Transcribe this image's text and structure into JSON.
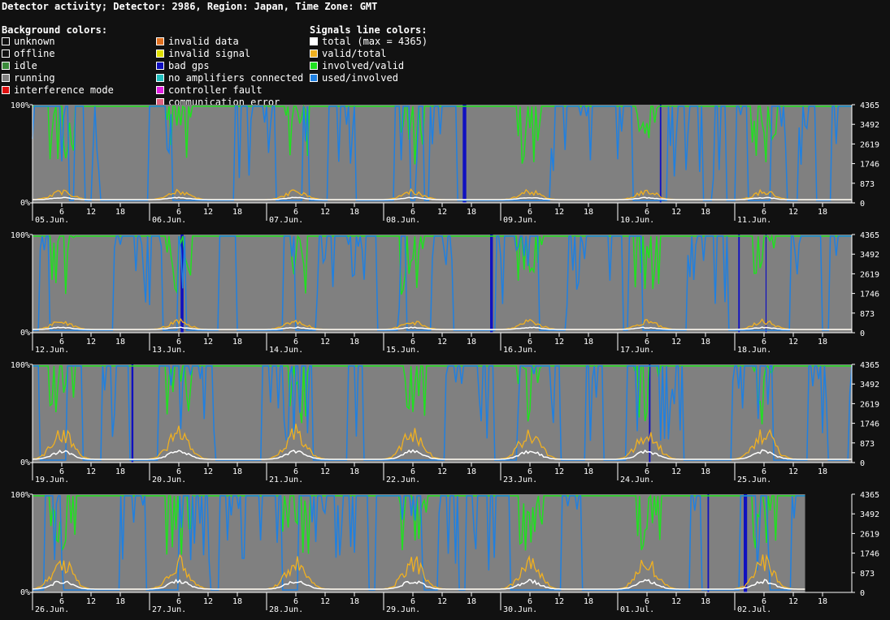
{
  "title": "Detector activity; Detector: 2986, Region: Japan, Time Zone: GMT",
  "legend": {
    "background_heading": "Background colors:",
    "signals_heading": "Signals line colors:",
    "background_items": [
      {
        "label": "unknown",
        "color": "#111111"
      },
      {
        "label": "offline",
        "color": "#111111"
      },
      {
        "label": "idle",
        "color": "#3a8a3a"
      },
      {
        "label": "running",
        "color": "#808080"
      },
      {
        "label": "interference mode",
        "color": "#e01010"
      },
      {
        "label": "invalid data",
        "color": "#e07020"
      },
      {
        "label": "invalid signal",
        "color": "#e0e000"
      },
      {
        "label": "bad gps",
        "color": "#1010c0"
      },
      {
        "label": "no amplifiers connected",
        "color": "#20c0c0"
      },
      {
        "label": "controller fault",
        "color": "#e020e0"
      },
      {
        "label": "communication error",
        "color": "#e06080"
      }
    ],
    "signal_items": [
      {
        "label": "total (max = 4365)",
        "color": "#ffffff"
      },
      {
        "label": "valid/total",
        "color": "#f0b020"
      },
      {
        "label": "involved/valid",
        "color": "#20e020"
      },
      {
        "label": "used/involved",
        "color": "#2080e0"
      }
    ]
  },
  "chart_data": {
    "type": "line",
    "left_axis": {
      "ticks": [
        "100%",
        "0%"
      ]
    },
    "right_axis": {
      "max": 4365,
      "ticks": [
        "4365",
        "3492",
        "2619",
        "1746",
        "873",
        "0"
      ]
    },
    "hour_ticks": [
      "6",
      "12",
      "18"
    ],
    "panels": [
      {
        "days": [
          "05.Jun.",
          "06.Jun.",
          "07.Jun.",
          "08.Jun.",
          "09.Jun.",
          "10.Jun.",
          "11.Jun."
        ],
        "data_end_fraction": 1.0
      },
      {
        "days": [
          "12.Jun.",
          "13.Jun.",
          "14.Jun.",
          "15.Jun.",
          "16.Jun.",
          "17.Jun.",
          "18.Jun."
        ],
        "data_end_fraction": 1.0
      },
      {
        "days": [
          "19.Jun.",
          "20.Jun.",
          "21.Jun.",
          "22.Jun.",
          "23.Jun.",
          "24.Jun.",
          "25.Jun."
        ],
        "data_end_fraction": 1.0
      },
      {
        "days": [
          "26.Jun.",
          "27.Jun.",
          "28.Jun.",
          "29.Jun.",
          "30.Jun.",
          "01.Jul.",
          "02.Jul."
        ],
        "data_end_fraction": 0.943
      }
    ],
    "series": [
      {
        "name": "total",
        "color": "#ffffff"
      },
      {
        "name": "valid/total",
        "color": "#f0b020"
      },
      {
        "name": "involved/valid",
        "color": "#20e020"
      },
      {
        "name": "used/involved",
        "color": "#2080e0"
      }
    ]
  }
}
